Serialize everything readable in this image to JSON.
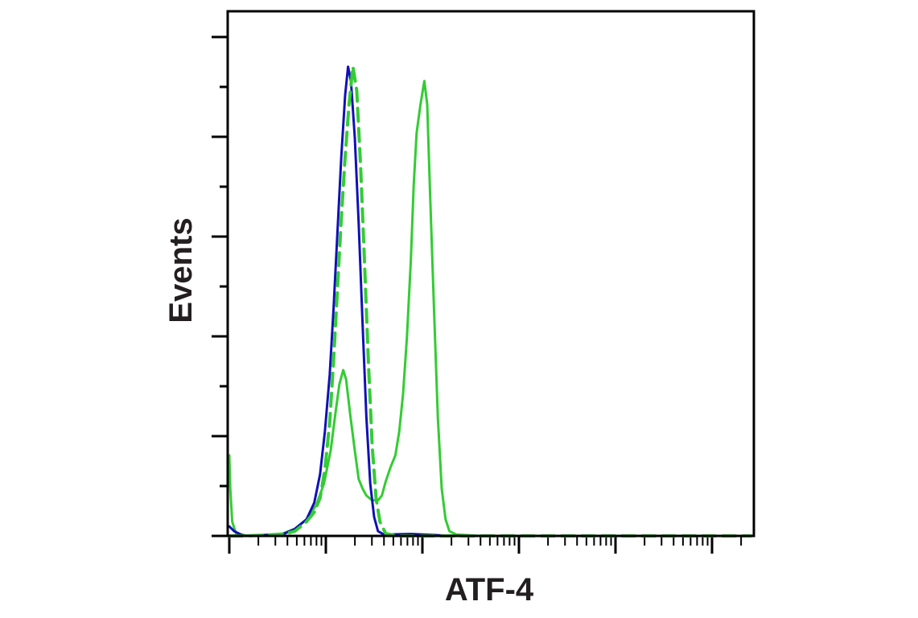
{
  "chart_data": {
    "type": "line",
    "title": "",
    "xlabel": "ATF-4",
    "ylabel": "Events",
    "x_scale": "log",
    "x_tick_labels_shown": false,
    "y_tick_labels_shown": false,
    "grid": false,
    "legend": "none",
    "xlim_decades": [
      0,
      5.4
    ],
    "ylim": [
      0,
      100
    ],
    "series": [
      {
        "color": "#1010b8",
        "style": "solid",
        "points": [
          [
            0,
            2
          ],
          [
            0.05,
            1
          ],
          [
            0.15,
            0
          ],
          [
            0.55,
            0.3
          ],
          [
            0.68,
            1.5
          ],
          [
            0.8,
            3.5
          ],
          [
            0.88,
            7
          ],
          [
            0.94,
            13
          ],
          [
            0.99,
            22
          ],
          [
            1.04,
            34
          ],
          [
            1.08,
            48
          ],
          [
            1.12,
            64
          ],
          [
            1.16,
            80
          ],
          [
            1.2,
            93
          ],
          [
            1.23,
            99
          ],
          [
            1.26,
            96
          ],
          [
            1.3,
            84
          ],
          [
            1.34,
            66
          ],
          [
            1.38,
            45
          ],
          [
            1.42,
            25
          ],
          [
            1.46,
            11
          ],
          [
            1.5,
            4
          ],
          [
            1.54,
            1
          ],
          [
            1.6,
            0.3
          ],
          [
            1.9,
            0.4
          ],
          [
            2.1,
            0.2
          ],
          [
            2.3,
            0
          ],
          [
            5.4,
            0
          ]
        ]
      },
      {
        "color": "#33cc33",
        "style": "dashed",
        "points": [
          [
            0,
            0
          ],
          [
            0.15,
            0
          ],
          [
            0.55,
            0.3
          ],
          [
            0.68,
            1
          ],
          [
            0.8,
            3
          ],
          [
            0.88,
            5
          ],
          [
            0.94,
            8
          ],
          [
            0.99,
            14
          ],
          [
            1.04,
            24
          ],
          [
            1.08,
            37
          ],
          [
            1.12,
            52
          ],
          [
            1.16,
            67
          ],
          [
            1.2,
            80
          ],
          [
            1.24,
            91
          ],
          [
            1.28,
            99
          ],
          [
            1.32,
            94
          ],
          [
            1.36,
            78
          ],
          [
            1.4,
            58
          ],
          [
            1.44,
            37
          ],
          [
            1.48,
            19
          ],
          [
            1.52,
            8
          ],
          [
            1.56,
            3
          ],
          [
            1.62,
            0.5
          ],
          [
            1.75,
            0
          ],
          [
            5.4,
            0
          ]
        ]
      },
      {
        "color": "#33cc33",
        "style": "solid",
        "points": [
          [
            0,
            17
          ],
          [
            0.01,
            10
          ],
          [
            0.03,
            3
          ],
          [
            0.07,
            0.5
          ],
          [
            0.2,
            0
          ],
          [
            0.55,
            0.5
          ],
          [
            0.68,
            1.5
          ],
          [
            0.8,
            3.5
          ],
          [
            0.9,
            6.5
          ],
          [
            0.98,
            11
          ],
          [
            1.05,
            18
          ],
          [
            1.1,
            26
          ],
          [
            1.14,
            32
          ],
          [
            1.18,
            35
          ],
          [
            1.21,
            33
          ],
          [
            1.25,
            26
          ],
          [
            1.3,
            18
          ],
          [
            1.34,
            12
          ],
          [
            1.38,
            10
          ],
          [
            1.42,
            8.5
          ],
          [
            1.48,
            7.5
          ],
          [
            1.54,
            7.5
          ],
          [
            1.58,
            8.5
          ],
          [
            1.62,
            11.5
          ],
          [
            1.67,
            14.5
          ],
          [
            1.72,
            17
          ],
          [
            1.76,
            22
          ],
          [
            1.8,
            30
          ],
          [
            1.84,
            42
          ],
          [
            1.88,
            58
          ],
          [
            1.91,
            74
          ],
          [
            1.94,
            85
          ],
          [
            1.98,
            91
          ],
          [
            2.02,
            96
          ],
          [
            2.05,
            91
          ],
          [
            2.08,
            72
          ],
          [
            2.12,
            48
          ],
          [
            2.16,
            25
          ],
          [
            2.2,
            10
          ],
          [
            2.24,
            3.5
          ],
          [
            2.28,
            1
          ],
          [
            2.35,
            0.3
          ],
          [
            2.6,
            0
          ],
          [
            5.4,
            0
          ]
        ]
      }
    ]
  }
}
